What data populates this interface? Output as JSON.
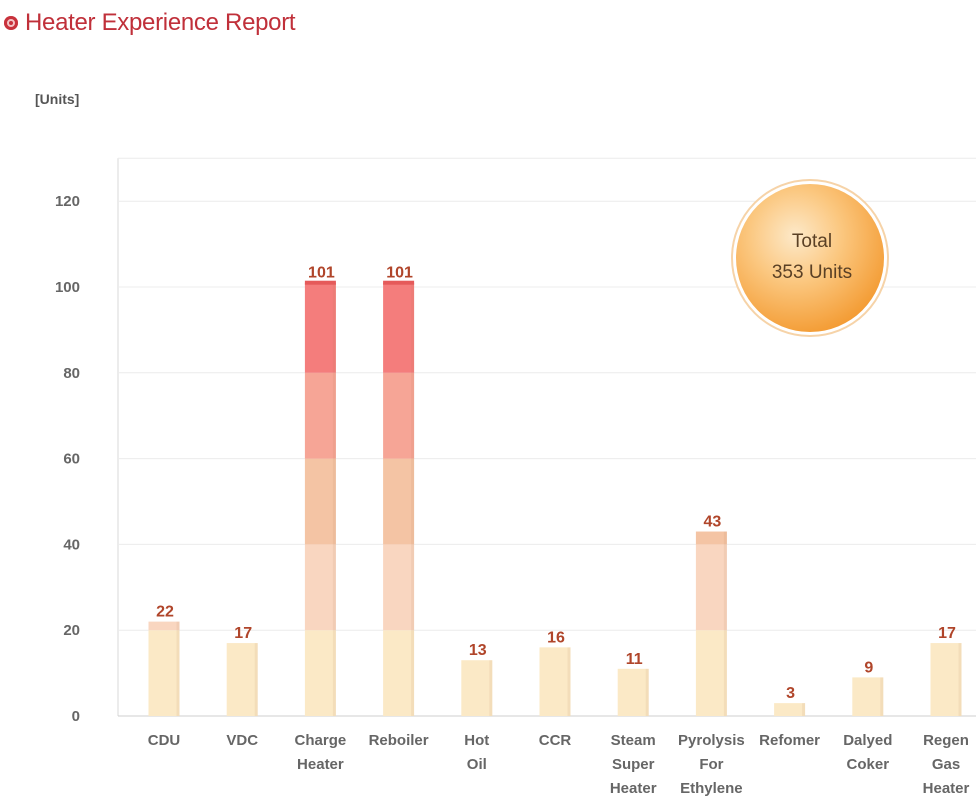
{
  "title": "Heater Experience Report",
  "total_badge": {
    "line1": "Total",
    "line2": "353 Units"
  },
  "chart_data": {
    "type": "bar",
    "title": "Heater Experience Report",
    "ylabel": "[Units]",
    "xlabel": "",
    "ylim": [
      0,
      130
    ],
    "yticks": [
      0,
      20,
      40,
      60,
      80,
      100,
      120
    ],
    "grid": true,
    "categories": [
      [
        "CDU"
      ],
      [
        "VDC"
      ],
      [
        "Charge",
        "Heater"
      ],
      [
        "Reboiler"
      ],
      [
        "Hot",
        "Oil"
      ],
      [
        "CCR"
      ],
      [
        "Steam",
        "Super",
        "Heater"
      ],
      [
        "Pyrolysis",
        "For",
        "Ethylene"
      ],
      [
        "Refomer"
      ],
      [
        "Dalyed",
        "Coker"
      ],
      [
        "Regen",
        "Gas",
        "Heater"
      ]
    ],
    "values": [
      22,
      17,
      101,
      101,
      13,
      16,
      11,
      43,
      3,
      9,
      17
    ],
    "band_colors": [
      "#fbe9c6",
      "#f9d6c0",
      "#f4c4a4",
      "#f6a596",
      "#f47d7c"
    ],
    "band_size": 20,
    "bar_top_cap_color": "#e55a5a"
  }
}
